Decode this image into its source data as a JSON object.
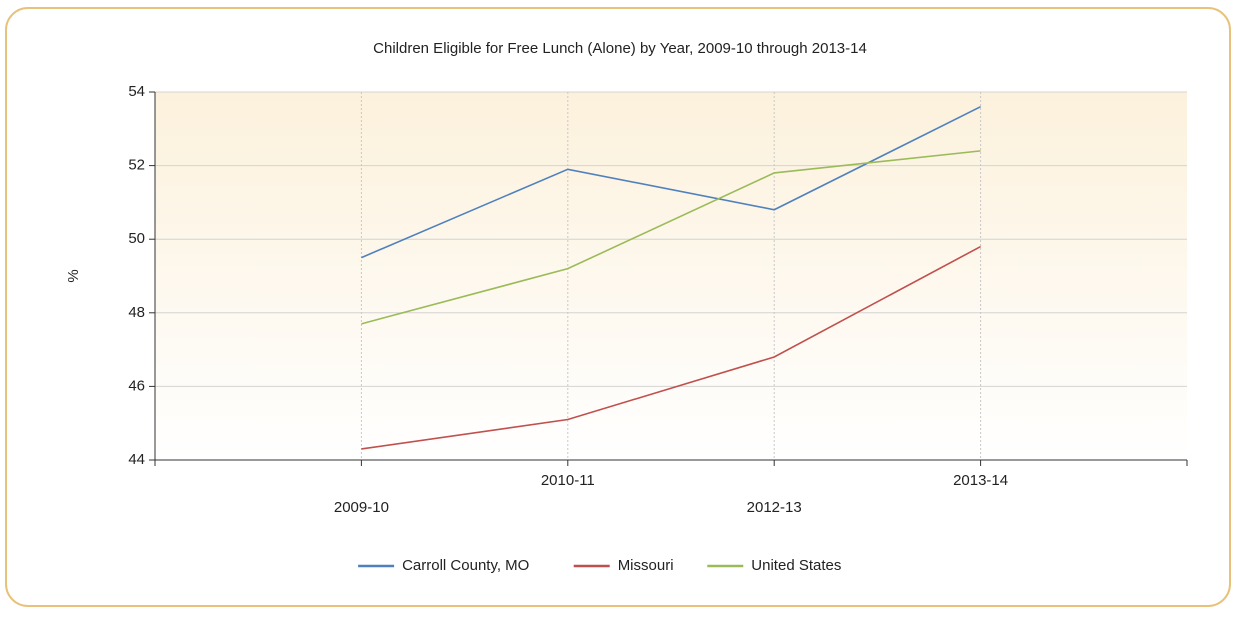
{
  "chart_data": {
    "type": "line",
    "title": "Children Eligible for Free Lunch (Alone) by Year, 2009-10 through 2013-14",
    "y_label": "%",
    "categories": [
      "2009-10",
      "2010-11",
      "2012-13",
      "2013-14"
    ],
    "series": [
      {
        "name": "Carroll County, MO",
        "color": "#4f81bd",
        "values": [
          49.5,
          51.9,
          50.8,
          53.6
        ]
      },
      {
        "name": "Missouri",
        "color": "#c0504d",
        "values": [
          44.3,
          45.1,
          46.8,
          49.8
        ]
      },
      {
        "name": "United States",
        "color": "#9bbb59",
        "values": [
          47.7,
          49.2,
          51.8,
          52.4
        ]
      }
    ],
    "ylim": [
      44,
      54
    ],
    "yticks": [
      44,
      46,
      48,
      50,
      52,
      54
    ],
    "grid": true,
    "legend": "bottom"
  }
}
